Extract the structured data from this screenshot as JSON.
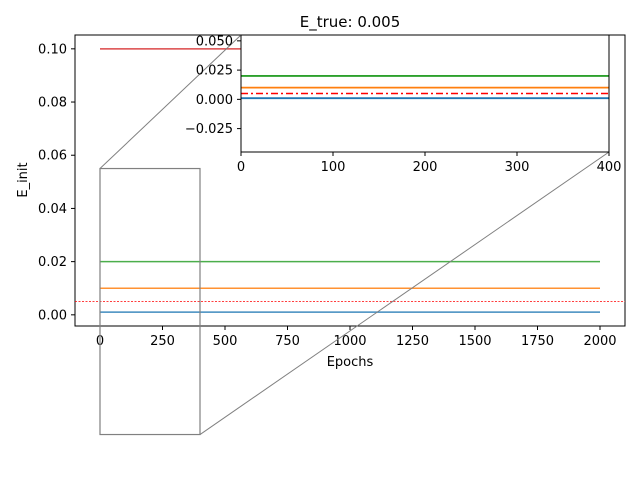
{
  "chart_data": {
    "type": "line",
    "title": "E_true: 0.005",
    "xlabel": "Epochs",
    "ylabel": "E_init",
    "xlim": [
      -100,
      2100
    ],
    "ylim": [
      -0.0042,
      0.1052
    ],
    "xticks": [
      0,
      250,
      500,
      750,
      1000,
      1250,
      1500,
      1750,
      2000
    ],
    "xtick_labels": [
      "0",
      "250",
      "500",
      "750",
      "1000",
      "1250",
      "1500",
      "1750",
      "2000"
    ],
    "yticks": [
      0.0,
      0.02,
      0.04,
      0.06,
      0.08,
      0.1
    ],
    "ytick_labels": [
      "0.00",
      "0.02",
      "0.04",
      "0.06",
      "0.08",
      "0.10"
    ],
    "grid": false,
    "series": [
      {
        "color": "#1f77b4",
        "x": [
          0,
          2000
        ],
        "y": [
          0.001,
          0.001
        ]
      },
      {
        "color": "#ff7f0e",
        "x": [
          0,
          2000
        ],
        "y": [
          0.01,
          0.01
        ]
      },
      {
        "color": "#2ca02c",
        "x": [
          0,
          2000
        ],
        "y": [
          0.02,
          0.02
        ]
      },
      {
        "color": "#d62728",
        "x": [
          0,
          2000
        ],
        "y": [
          0.1,
          0.1
        ]
      }
    ],
    "reference_line": {
      "y": 0.005,
      "color": "#ff0000",
      "style": "dashed"
    },
    "zoom_region": {
      "xlim": [
        0,
        400
      ],
      "ylim": [
        -0.045,
        0.055
      ]
    },
    "inset": {
      "xlim": [
        0,
        400
      ],
      "ylim": [
        -0.045,
        0.055
      ],
      "xticks": [
        0,
        100,
        200,
        300,
        400
      ],
      "xtick_labels": [
        "0",
        "100",
        "200",
        "300",
        "400"
      ],
      "yticks": [
        -0.025,
        0.0,
        0.025,
        0.05
      ],
      "ytick_labels": [
        "−0.025",
        "0.000",
        "0.025",
        "0.050"
      ],
      "series": [
        {
          "color": "#1f77b4",
          "y": 0.001
        },
        {
          "color": "#ff7f0e",
          "y": 0.01
        },
        {
          "color": "#2ca02c",
          "y": 0.02
        }
      ],
      "reference_line": {
        "y": 0.005,
        "color": "#ff0000",
        "style": "dashdot"
      }
    }
  }
}
